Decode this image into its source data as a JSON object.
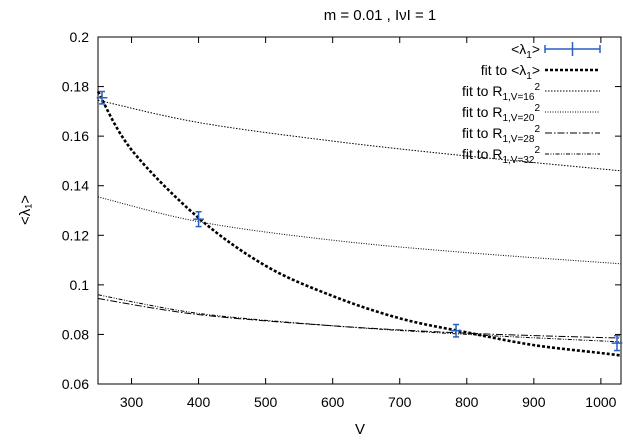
{
  "chart_data": {
    "type": "line",
    "title": "m = 0.01 ,  IνI = 1",
    "xlabel": "V",
    "ylabel": "<λ₁>",
    "xlim": [
      250,
      1030
    ],
    "ylim": [
      0.06,
      0.2
    ],
    "x_ticks": [
      300,
      400,
      500,
      600,
      700,
      800,
      900,
      1000
    ],
    "y_ticks": [
      0.06,
      0.08,
      0.1,
      0.12,
      0.14,
      0.16,
      0.18,
      0.2
    ],
    "legend_position": "top-right",
    "legend": [
      {
        "key": "data",
        "main": "<λ",
        "sub": "1",
        "tail": ">",
        "color": "#2a5fc4"
      },
      {
        "key": "fit",
        "main": "fit to <λ",
        "sub": "1",
        "tail": ">",
        "color": "#000000"
      },
      {
        "key": "r16",
        "main": "fit to R",
        "sub": "1,V=16",
        "sup": "2",
        "color": "#000000"
      },
      {
        "key": "r20",
        "main": "fit to R",
        "sub": "1,V=20",
        "sup": "2",
        "color": "#000000"
      },
      {
        "key": "r28",
        "main": "fit to R",
        "sub": "1,V=28",
        "sup": "2",
        "color": "#000000"
      },
      {
        "key": "r32",
        "main": "fit to R",
        "sub": "1,V=32",
        "sup": "2",
        "color": "#000000"
      }
    ],
    "data_points": {
      "name": "<λ1>",
      "x": [
        256,
        400,
        784,
        1024
      ],
      "y": [
        0.1755,
        0.1265,
        0.0815,
        0.0765
      ],
      "yerr": [
        0.0025,
        0.003,
        0.0025,
        0.003
      ],
      "xerr": [
        8,
        8,
        8,
        8
      ]
    },
    "series": [
      {
        "name": "fit to <λ1>",
        "x": [
          250,
          300,
          400,
          500,
          600,
          700,
          800,
          900,
          1000,
          1030
        ],
        "y": [
          0.178,
          0.1545,
          0.127,
          0.1077,
          0.0955,
          0.0865,
          0.0808,
          0.0757,
          0.0725,
          0.0715
        ]
      },
      {
        "name": "fit to R1,V=16²",
        "x": [
          250,
          400,
          600,
          800,
          1030
        ],
        "y": [
          0.1745,
          0.1655,
          0.158,
          0.152,
          0.146
        ]
      },
      {
        "name": "fit to R1,V=20²",
        "x": [
          250,
          400,
          600,
          800,
          1030
        ],
        "y": [
          0.1355,
          0.1255,
          0.118,
          0.113,
          0.1085
        ]
      },
      {
        "name": "fit to R1,V=28²",
        "x": [
          250,
          400,
          600,
          800,
          1030
        ],
        "y": [
          0.0945,
          0.088,
          0.0835,
          0.0805,
          0.0785
        ]
      },
      {
        "name": "fit to R1,V=32²",
        "x": [
          250,
          400,
          600,
          800,
          1030
        ],
        "y": [
          0.096,
          0.0885,
          0.0835,
          0.08,
          0.077
        ]
      }
    ]
  }
}
